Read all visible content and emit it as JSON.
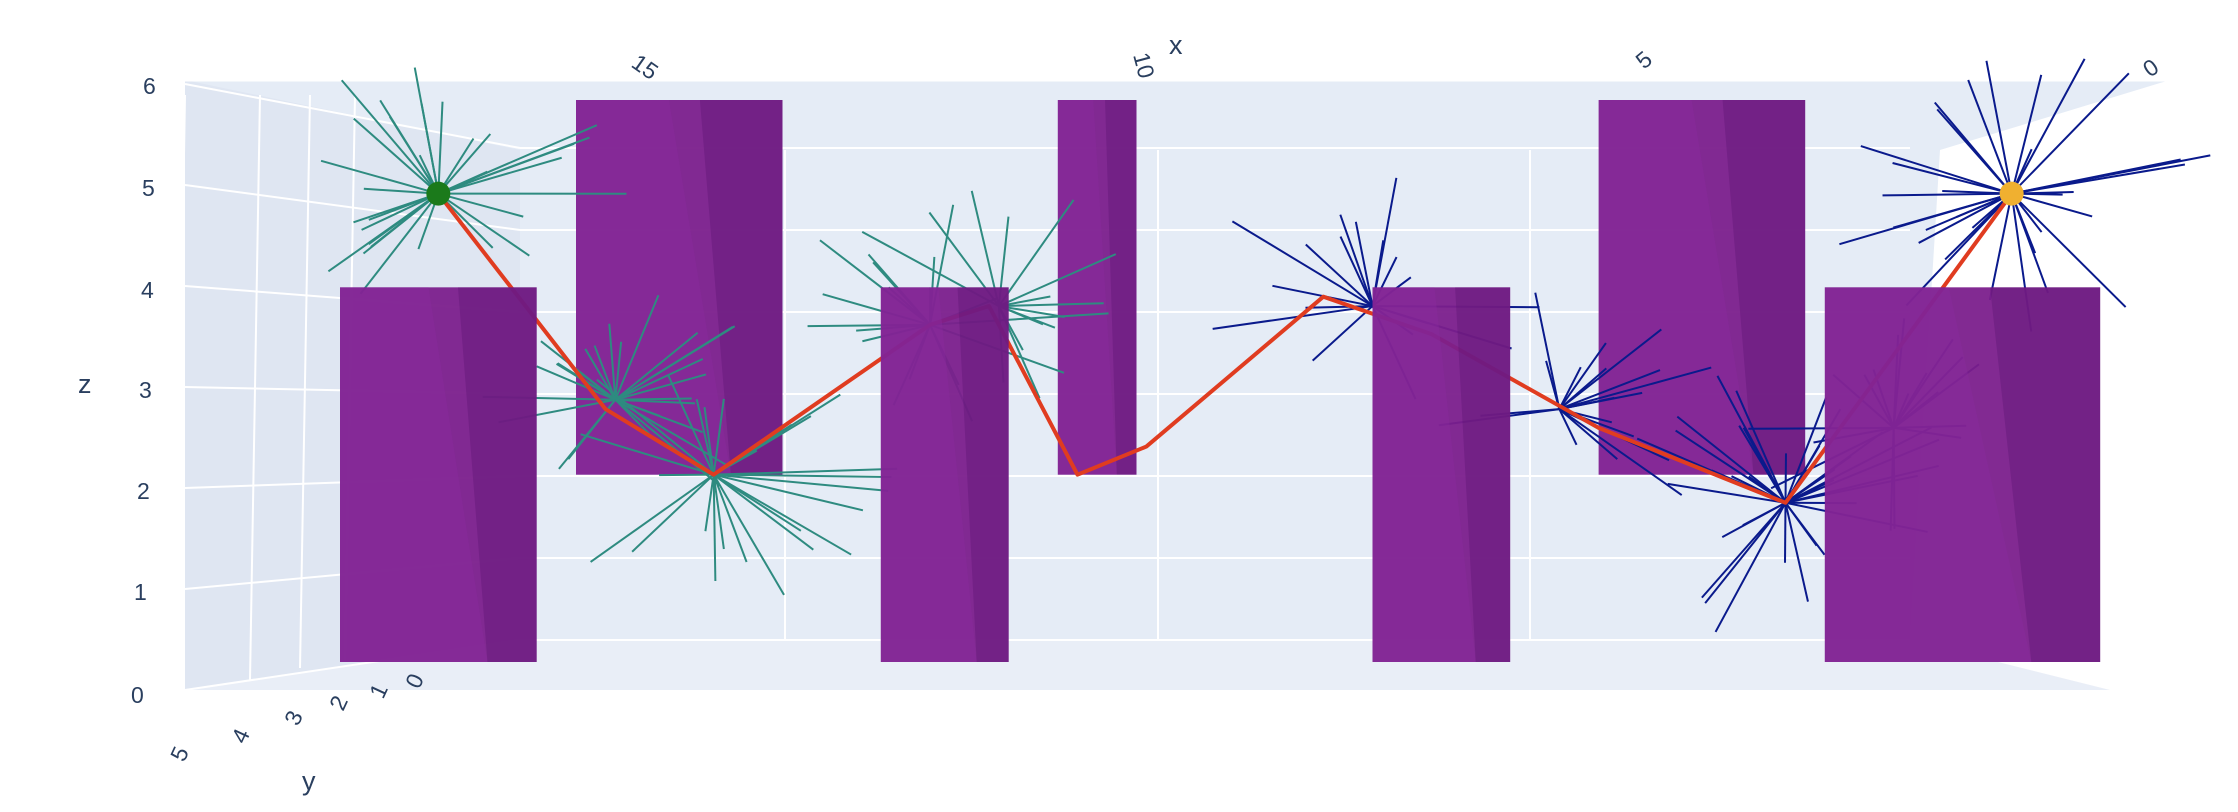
{
  "chart_data": {
    "type": "scatter3d",
    "title": "",
    "axes": {
      "x": {
        "label": "x",
        "range": [
          0,
          18
        ],
        "reversed": true,
        "ticks": [
          "15",
          "10",
          "5",
          "0"
        ]
      },
      "y": {
        "label": "y",
        "range": [
          0,
          5
        ],
        "ticks": [
          "0",
          "1",
          "2",
          "3",
          "4",
          "5"
        ]
      },
      "z": {
        "label": "z",
        "range": [
          0,
          6
        ],
        "ticks": [
          "0",
          "1",
          "2",
          "3",
          "4",
          "5",
          "6"
        ]
      }
    },
    "grid": true,
    "background_color": "#E5ECF6",
    "start_point": {
      "x": 17,
      "y": 0,
      "z": 5,
      "color": "#1B7A1B"
    },
    "goal_point": {
      "x": 1,
      "y": 0,
      "z": 5,
      "color": "#F0B030"
    },
    "obstacles": [
      {
        "x_min": 16.0,
        "x_max": 18.0,
        "z_min": 0,
        "z_max": 4,
        "depth": "front",
        "color": "#7B1F8C"
      },
      {
        "x_min": 13.5,
        "x_max": 15.6,
        "z_min": 2,
        "z_max": 6,
        "depth": "back",
        "color": "#7B1F8C"
      },
      {
        "x_min": 11.2,
        "x_max": 12.5,
        "z_min": 0,
        "z_max": 4,
        "depth": "mid",
        "color": "#7B1F8C"
      },
      {
        "x_min": 9.9,
        "x_max": 10.7,
        "z_min": 2,
        "z_max": 6,
        "depth": "back",
        "color": "#7B1F8C"
      },
      {
        "x_min": 6.1,
        "x_max": 7.5,
        "z_min": 0,
        "z_max": 4,
        "depth": "mid",
        "color": "#7B1F8C"
      },
      {
        "x_min": 3.1,
        "x_max": 5.2,
        "z_min": 2,
        "z_max": 6,
        "depth": "back",
        "color": "#7B1F8C"
      },
      {
        "x_min": 0.1,
        "x_max": 2.9,
        "z_min": 0,
        "z_max": 4,
        "depth": "front",
        "color": "#7B1F8C"
      }
    ],
    "series": [
      {
        "type": "tree",
        "color": "#2E8B80",
        "root": {
          "x": 17,
          "z": 5
        }
      },
      {
        "type": "tree",
        "color": "#0A1A8C",
        "root": {
          "x": 1,
          "z": 5
        }
      },
      {
        "type": "path",
        "color": "#E03C20",
        "points": [
          {
            "x": 17.0,
            "z": 5.0
          },
          {
            "x": 15.3,
            "z": 2.7
          },
          {
            "x": 14.2,
            "z": 2.0
          },
          {
            "x": 12.0,
            "z": 3.6
          },
          {
            "x": 11.4,
            "z": 3.8
          },
          {
            "x": 10.5,
            "z": 2.0
          },
          {
            "x": 9.8,
            "z": 2.3
          },
          {
            "x": 8.0,
            "z": 3.9
          },
          {
            "x": 6.9,
            "z": 3.5
          },
          {
            "x": 5.2,
            "z": 2.5
          },
          {
            "x": 3.3,
            "z": 1.7
          },
          {
            "x": 1.0,
            "z": 5.0
          }
        ]
      }
    ]
  }
}
